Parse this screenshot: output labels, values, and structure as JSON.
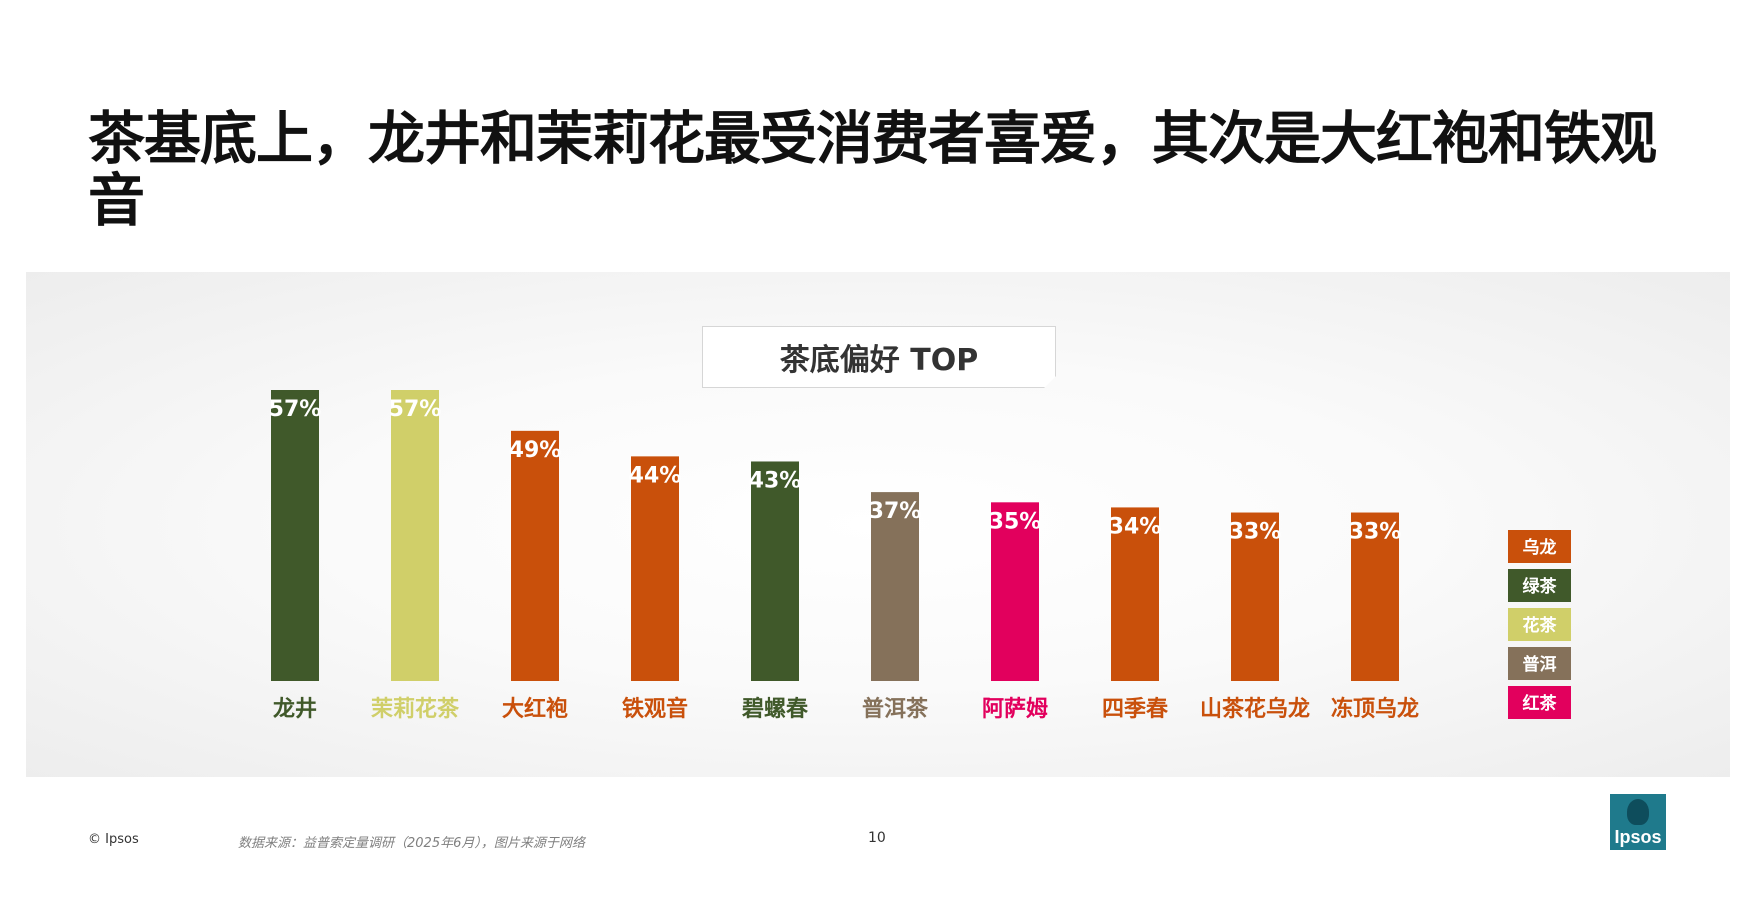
{
  "title": "茶基底上，龙井和茉莉花最受消费者喜爱，其次是大红袍和铁观音",
  "chart_title": "茶底偏好 TOP",
  "chart_data": {
    "type": "bar",
    "title": "茶底偏好 TOP",
    "categories": [
      "龙井",
      "茉莉花茶",
      "大红袍",
      "铁观音",
      "碧螺春",
      "普洱茶",
      "阿萨姆",
      "四季春",
      "山茶花乌龙",
      "冻顶乌龙"
    ],
    "values": [
      57,
      57,
      49,
      44,
      43,
      37,
      35,
      34,
      33,
      33
    ],
    "value_labels": [
      "57%",
      "57%",
      "49%",
      "44%",
      "43%",
      "37%",
      "35%",
      "34%",
      "33%",
      "33%"
    ],
    "groups": [
      "绿茶",
      "花茶",
      "乌龙",
      "乌龙",
      "绿茶",
      "普洱",
      "红茶",
      "乌龙",
      "乌龙",
      "乌龙"
    ],
    "unit": "%",
    "ylim": [
      0,
      60
    ],
    "grid": false,
    "legend_position": "right",
    "legend": [
      {
        "name": "乌龙",
        "color": "#c9500b"
      },
      {
        "name": "绿茶",
        "color": "#40592a"
      },
      {
        "name": "花茶",
        "color": "#d0cf69"
      },
      {
        "name": "普洱",
        "color": "#85715a"
      },
      {
        "name": "红茶",
        "color": "#e2005d"
      }
    ],
    "group_colors": {
      "乌龙": "#c9500b",
      "绿茶": "#40592a",
      "花茶": "#d0cf69",
      "普洱": "#85715a",
      "红茶": "#e2005d"
    }
  },
  "footer": {
    "copyright": "© Ipsos",
    "source": "数据来源：益普索定量调研（2025年6月），图片来源于网络",
    "page_number": "10"
  },
  "logo": {
    "text": "Ipsos",
    "icon": "ipsos-logo-icon",
    "color": "#1f7a8c"
  }
}
